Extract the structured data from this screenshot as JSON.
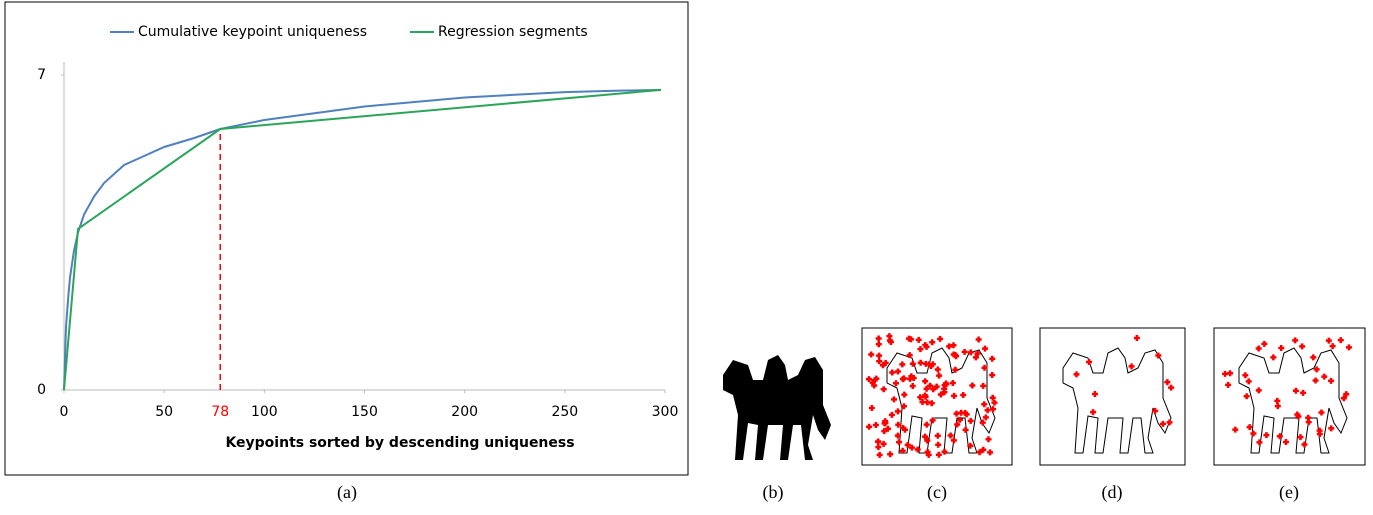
{
  "chart_data": {
    "type": "line",
    "xlabel": "Keypoints sorted by descending uniqueness",
    "xlim": [
      0,
      300
    ],
    "xticks": [
      0,
      50,
      100,
      150,
      200,
      250,
      300
    ],
    "ylim": [
      0,
      7
    ],
    "yticks": [
      0,
      7
    ],
    "highlight": {
      "x": 78,
      "color": "#ff0000"
    },
    "legend": "top",
    "series": [
      {
        "name": "Cumulative keypoint uniqueness",
        "color": "#4f81bd",
        "x": [
          0,
          1,
          2,
          3,
          5,
          7,
          10,
          15,
          20,
          30,
          40,
          50,
          65,
          78,
          100,
          125,
          150,
          175,
          200,
          225,
          250,
          275,
          298
        ],
        "values": [
          0,
          1.4,
          2.0,
          2.5,
          3.1,
          3.5,
          3.9,
          4.3,
          4.6,
          5.0,
          5.2,
          5.4,
          5.6,
          5.8,
          6.0,
          6.15,
          6.3,
          6.4,
          6.5,
          6.56,
          6.62,
          6.65,
          6.67
        ]
      },
      {
        "name": "Regression segments",
        "color": "#2aa55a",
        "x": [
          0,
          7,
          78,
          298
        ],
        "values": [
          0,
          3.58,
          5.8,
          6.67
        ]
      }
    ]
  },
  "captions": [
    "(a)",
    "(b)",
    "(c)",
    "(d)",
    "(e)"
  ]
}
